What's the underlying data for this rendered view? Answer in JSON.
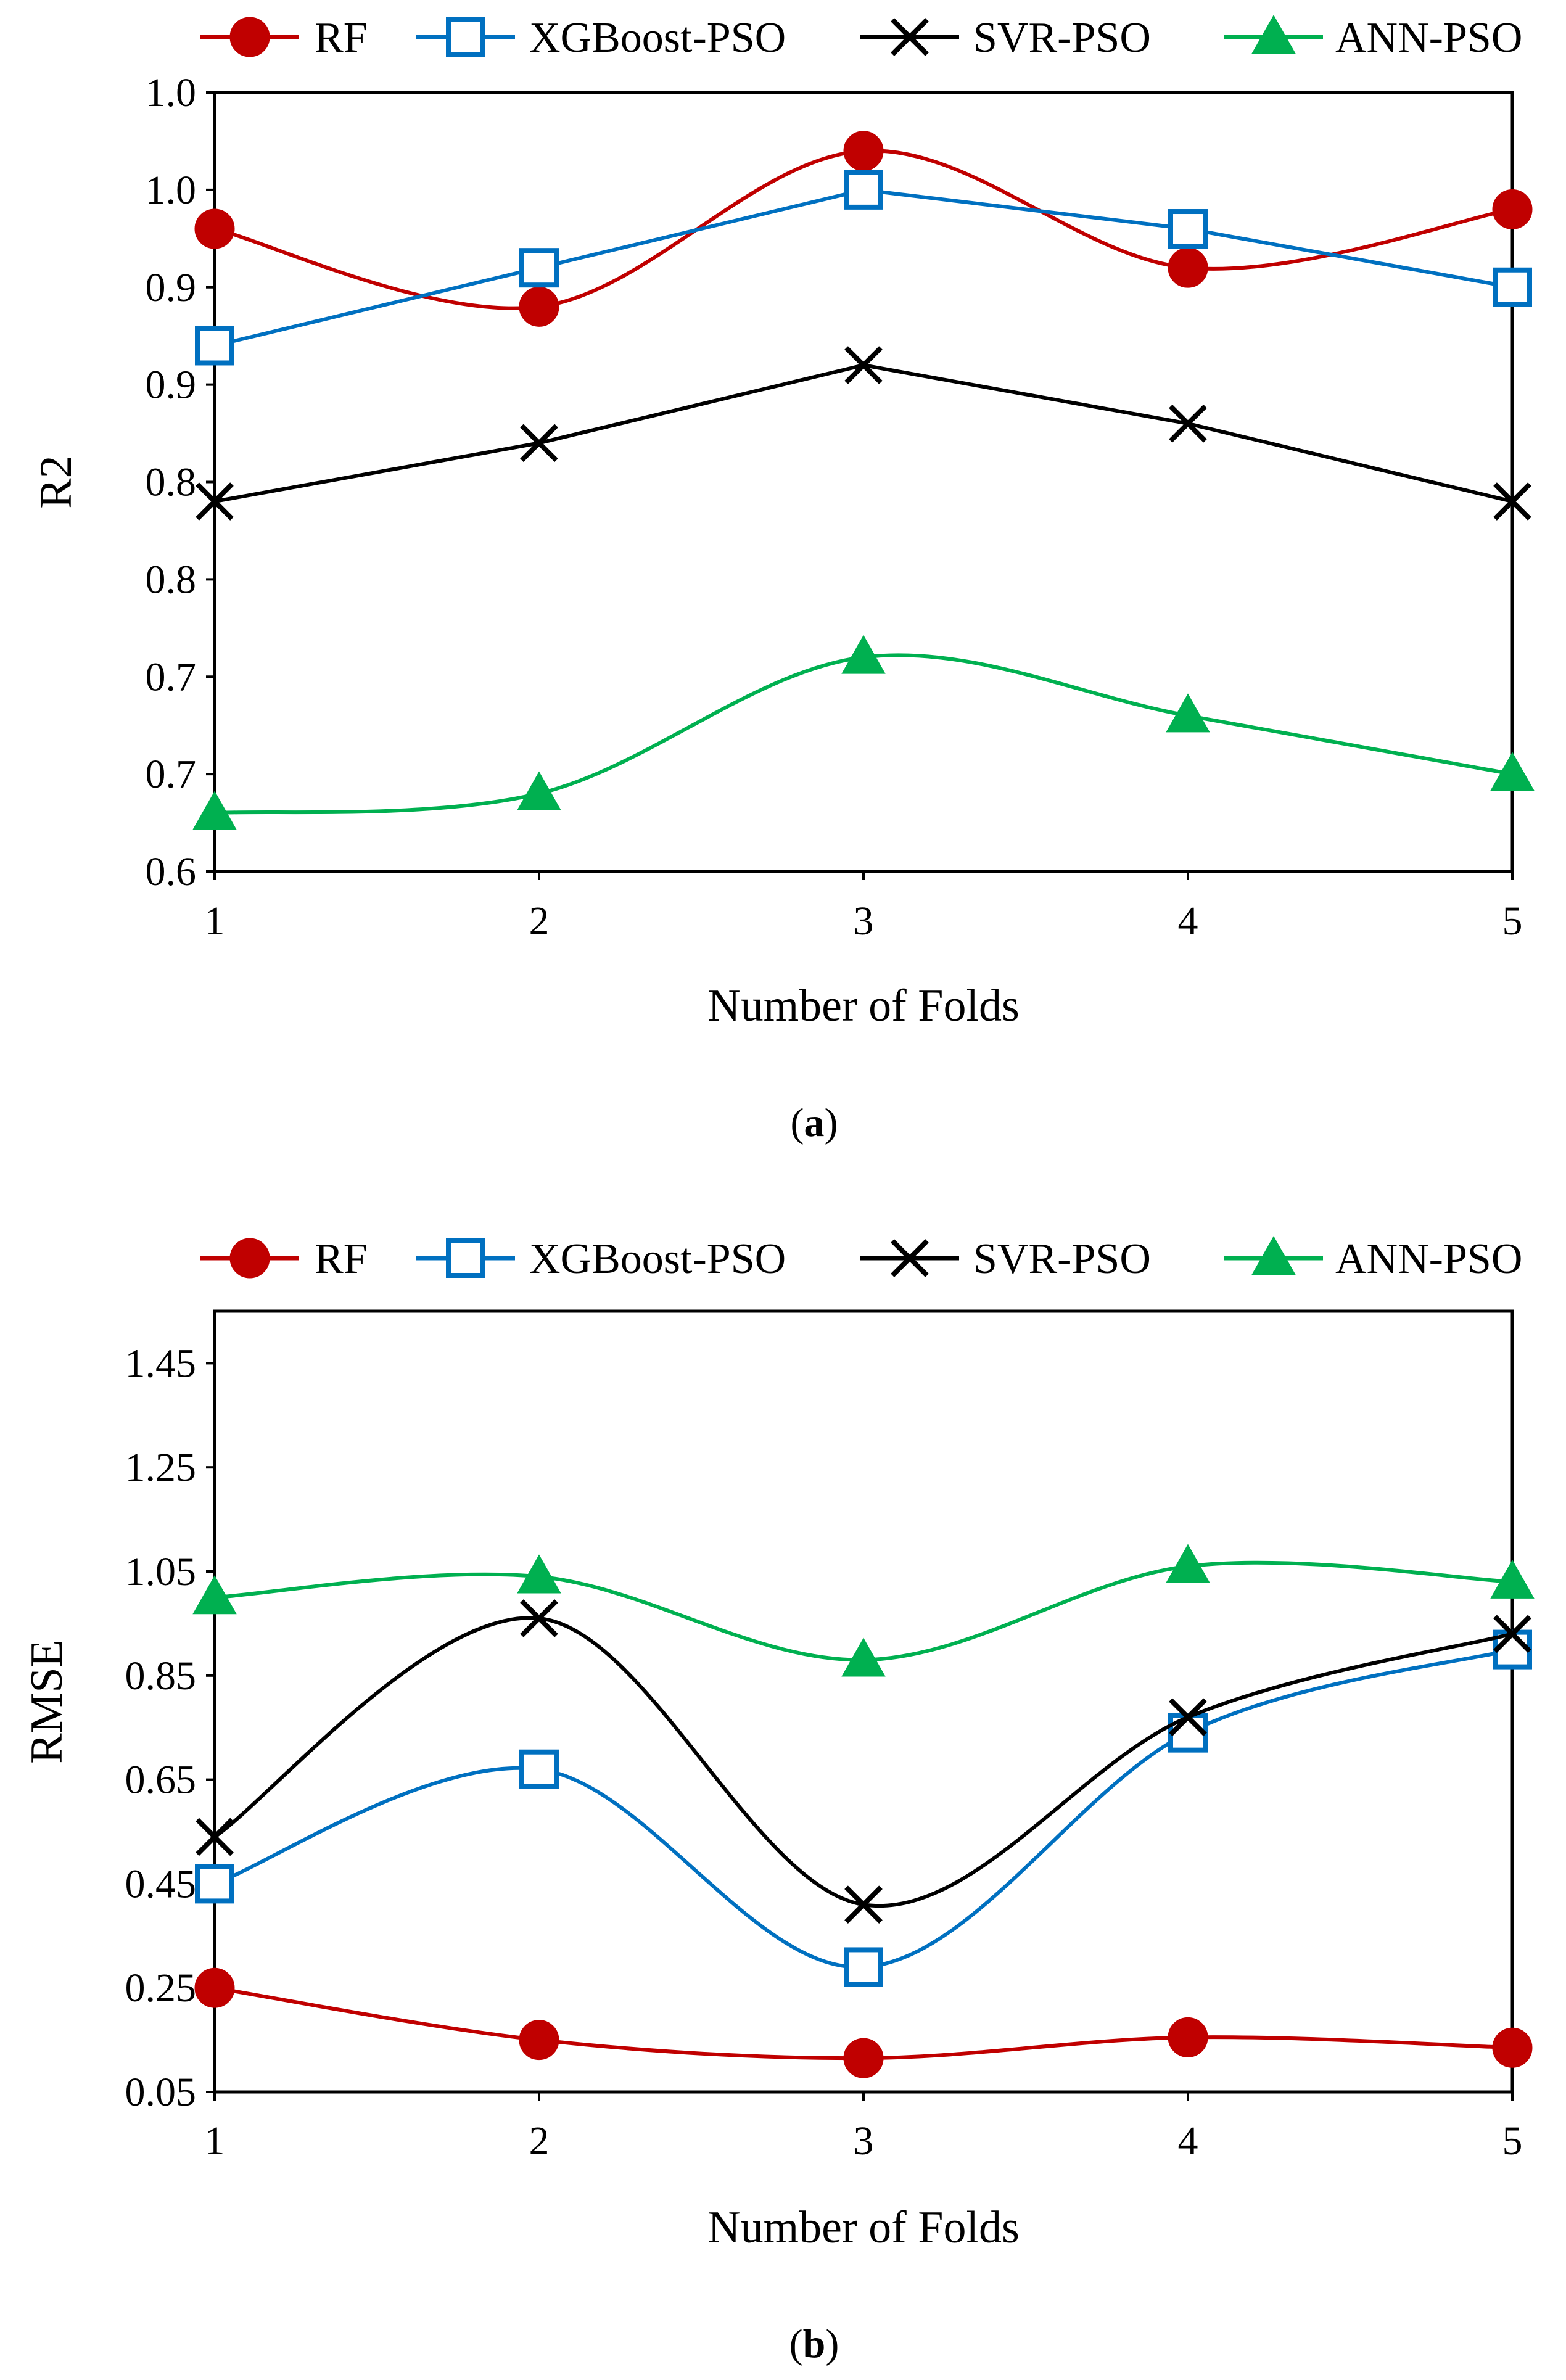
{
  "chart_data": [
    {
      "type": "line",
      "panel_label": "a",
      "xlabel": "Number of Folds",
      "ylabel": "R2",
      "x": [
        1,
        2,
        3,
        4,
        5
      ],
      "x_tick_labels": [
        "1",
        "2",
        "3",
        "4",
        "5"
      ],
      "ylim": [
        0.6,
        1.0
      ],
      "y_ticks": [
        0.6,
        0.65,
        0.7,
        0.75,
        0.8,
        0.85,
        0.9,
        0.95,
        1.0
      ],
      "y_tick_labels": [
        "0.6",
        "0.7",
        "0.7",
        "0.8",
        "0.8",
        "0.9",
        "0.9",
        "1.0",
        "1.0"
      ],
      "grid": false,
      "legend_position": "top",
      "series": [
        {
          "name": "RF",
          "color": "#c00000",
          "marker": "circle",
          "values": [
            0.93,
            0.89,
            0.97,
            0.91,
            0.94
          ]
        },
        {
          "name": "XGBoost-PSO",
          "color": "#0070c0",
          "marker": "square-open",
          "values": [
            0.87,
            0.91,
            0.95,
            0.93,
            0.9
          ]
        },
        {
          "name": "SVR-PSO",
          "color": "#000000",
          "marker": "cross",
          "values": [
            0.79,
            0.82,
            0.86,
            0.83,
            0.79
          ]
        },
        {
          "name": "ANN-PSO",
          "color": "#00b050",
          "marker": "triangle",
          "values": [
            0.63,
            0.64,
            0.71,
            0.68,
            0.65
          ]
        }
      ]
    },
    {
      "type": "line",
      "panel_label": "b",
      "xlabel": "Number of Folds",
      "ylabel": "RMSE",
      "x": [
        1,
        2,
        3,
        4,
        5
      ],
      "x_tick_labels": [
        "1",
        "2",
        "3",
        "4",
        "5"
      ],
      "ylim": [
        0.05,
        1.55
      ],
      "y_ticks": [
        0.05,
        0.25,
        0.45,
        0.65,
        0.85,
        1.05,
        1.25,
        1.45
      ],
      "y_tick_labels": [
        "0.05",
        "0.25",
        "0.45",
        "0.65",
        "0.85",
        "1.05",
        "1.25",
        "1.45"
      ],
      "grid": false,
      "legend_position": "top",
      "series": [
        {
          "name": "RF",
          "color": "#c00000",
          "marker": "circle",
          "values": [
            0.25,
            0.15,
            0.115,
            0.155,
            0.135
          ]
        },
        {
          "name": "XGBoost-PSO",
          "color": "#0070c0",
          "marker": "square-open",
          "values": [
            0.45,
            0.67,
            0.29,
            0.74,
            0.9
          ]
        },
        {
          "name": "SVR-PSO",
          "color": "#000000",
          "marker": "cross",
          "values": [
            0.54,
            0.96,
            0.41,
            0.77,
            0.93
          ]
        },
        {
          "name": "ANN-PSO",
          "color": "#00b050",
          "marker": "triangle",
          "values": [
            1.0,
            1.04,
            0.88,
            1.06,
            1.03
          ]
        }
      ]
    }
  ]
}
